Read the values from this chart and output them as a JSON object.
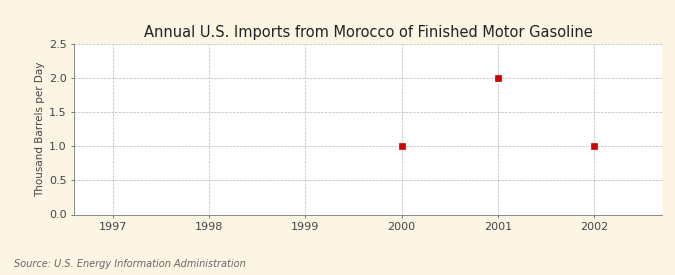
{
  "title": "Annual U.S. Imports from Morocco of Finished Motor Gasoline",
  "ylabel": "Thousand Barrels per Day",
  "source": "Source: U.S. Energy Information Administration",
  "xlim": [
    1996.6,
    2002.7
  ],
  "ylim": [
    0.0,
    2.5
  ],
  "yticks": [
    0.0,
    0.5,
    1.0,
    1.5,
    2.0,
    2.5
  ],
  "xticks": [
    1997,
    1998,
    1999,
    2000,
    2001,
    2002
  ],
  "data_x": [
    2000,
    2001,
    2002
  ],
  "data_y": [
    1.0,
    2.0,
    1.0
  ],
  "marker_color": "#cc0000",
  "marker_size": 4,
  "bg_color": "#fdf5e4",
  "plot_bg_color": "#ffffff",
  "grid_color": "#999999",
  "title_color": "#222222",
  "label_color": "#444444",
  "tick_color": "#444444",
  "source_color": "#666666",
  "title_fontsize": 10.5,
  "label_fontsize": 7.5,
  "tick_fontsize": 8,
  "source_fontsize": 7
}
